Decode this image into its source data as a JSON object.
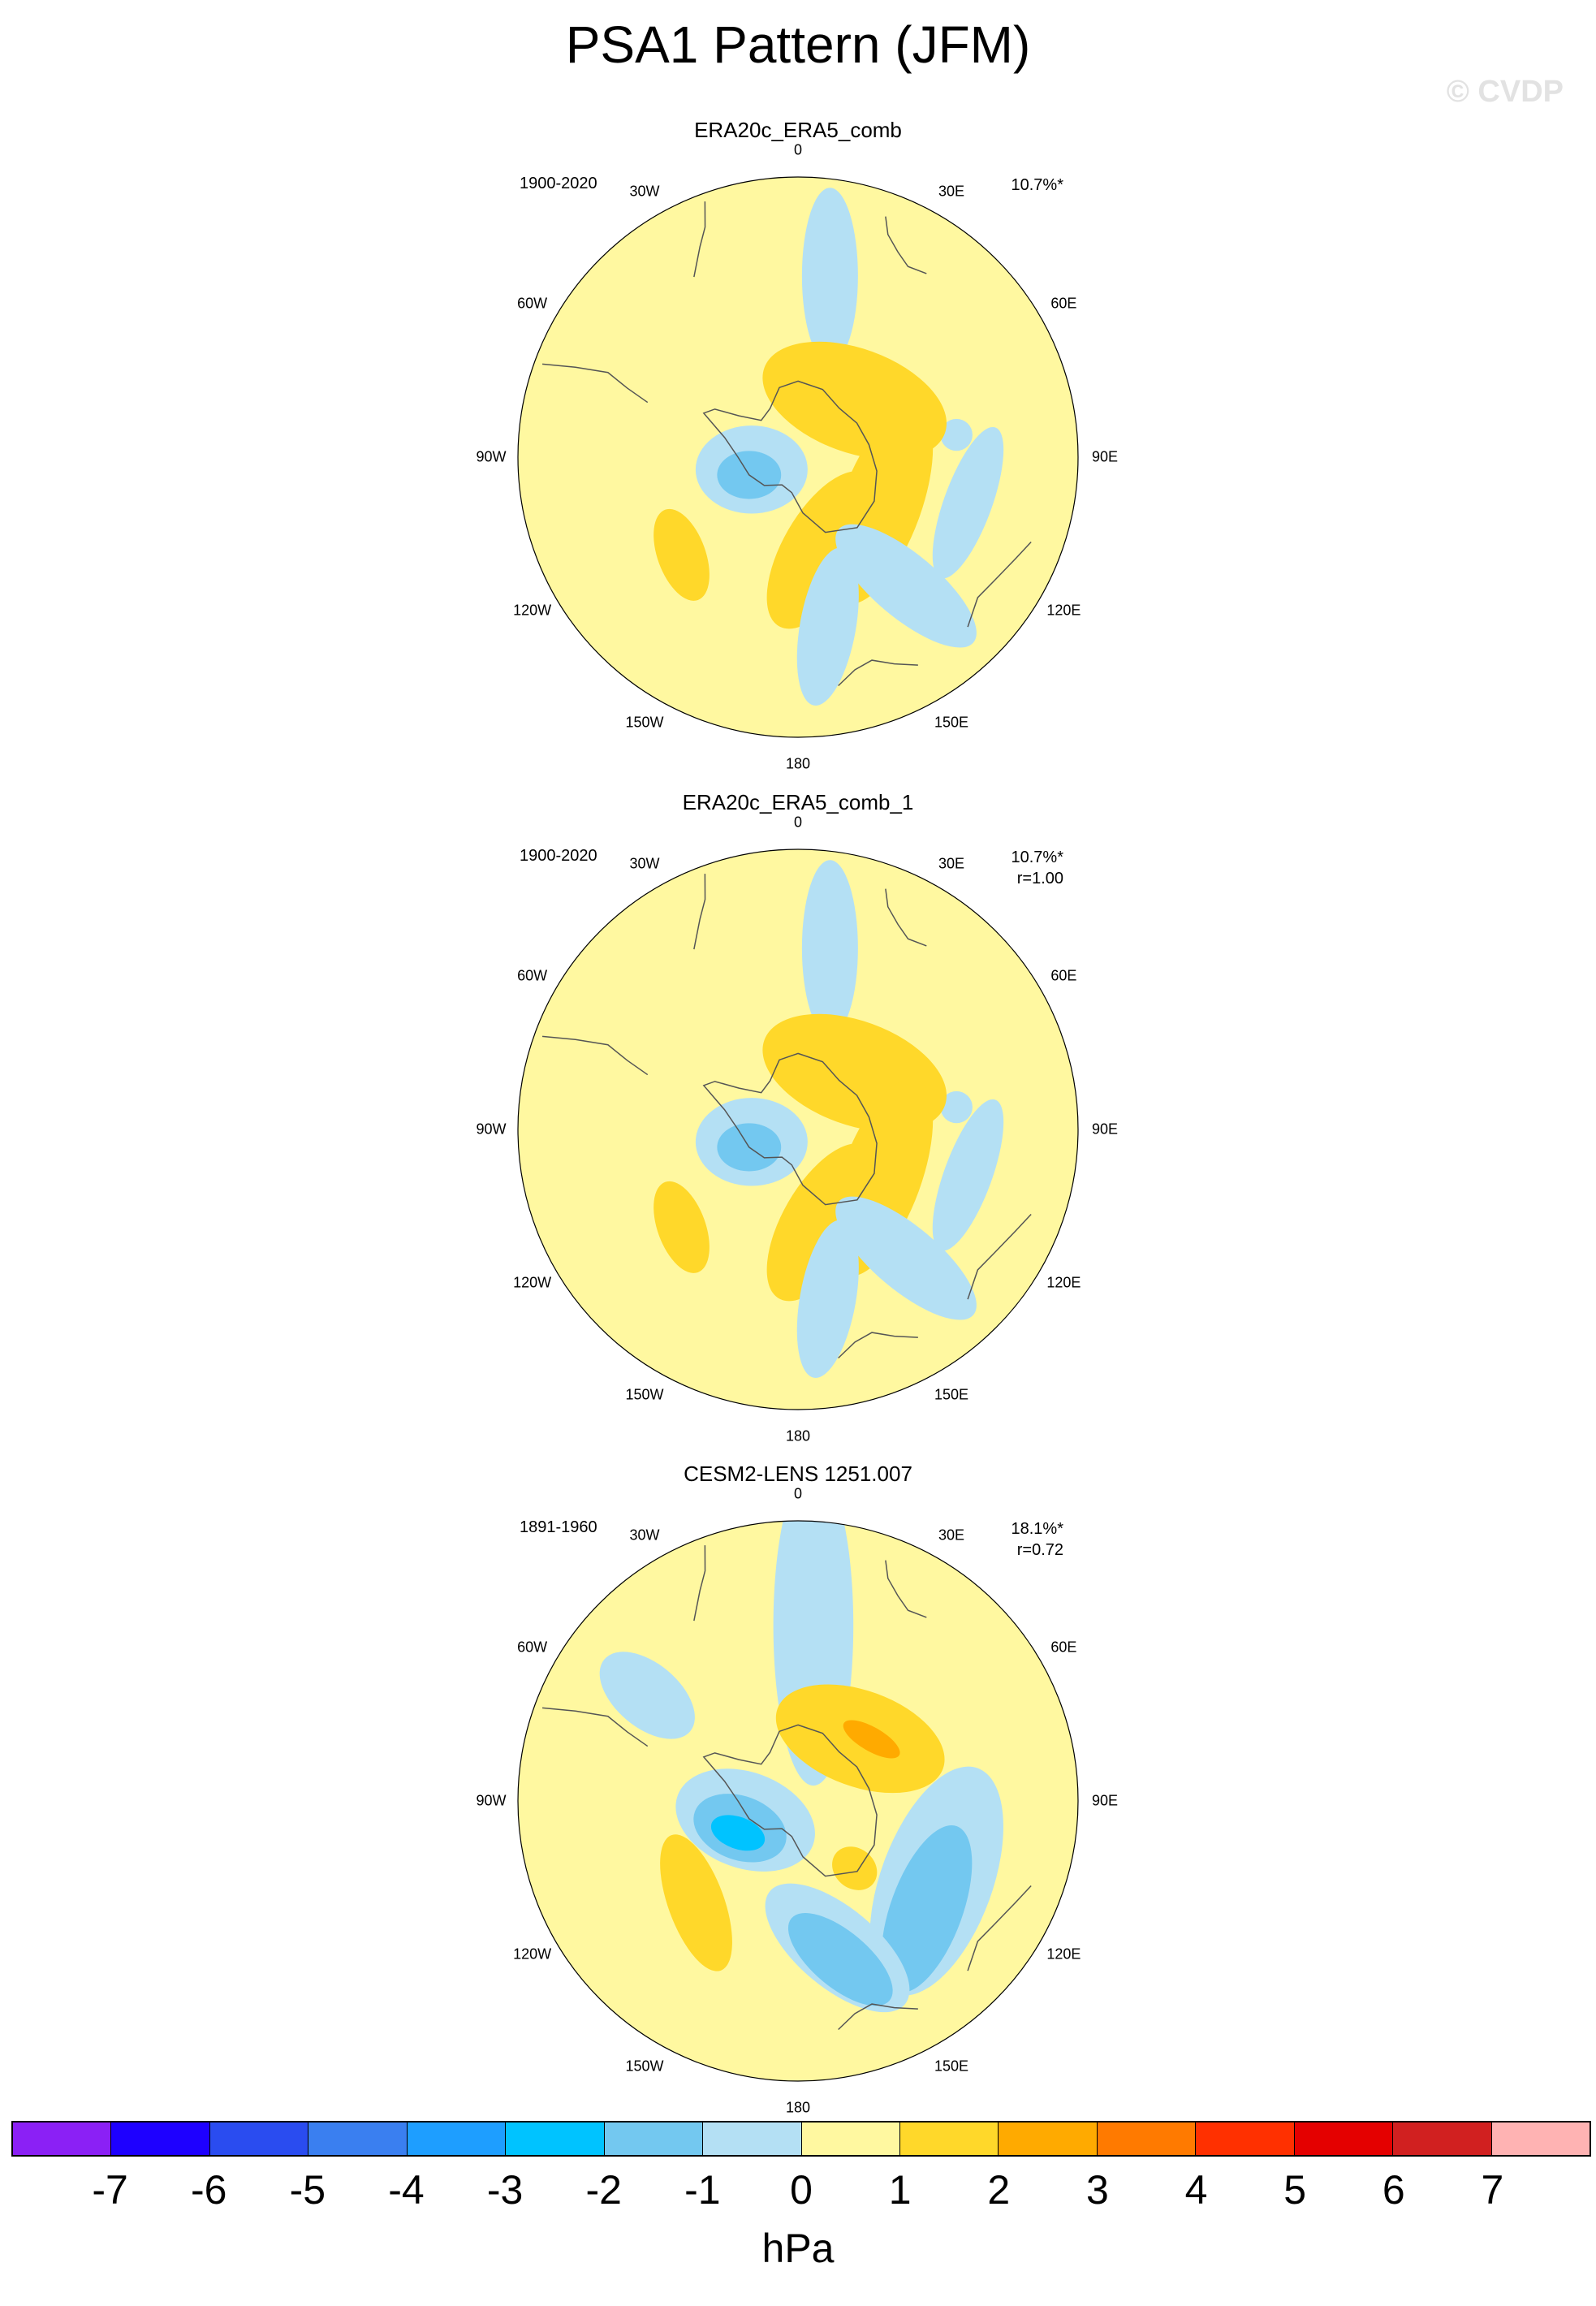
{
  "title": "PSA1 Pattern (JFM)",
  "watermark": "© CVDP",
  "longitude_labels": [
    "0",
    "30E",
    "60E",
    "90E",
    "120E",
    "150E",
    "180",
    "150W",
    "120W",
    "90W",
    "60W",
    "30W"
  ],
  "panels": [
    {
      "title": "ERA20c_ERA5_comb",
      "period": "1900-2020",
      "stats": [
        "10.7%*"
      ],
      "features": [
        {
          "kind": "neg1",
          "lon": 10,
          "colat": 46,
          "r1": 7,
          "r2": 22,
          "rot": 90
        },
        {
          "kind": "neg1",
          "lon": 82,
          "colat": 40,
          "r1": 4,
          "r2": 4,
          "rot": 0
        },
        {
          "kind": "ring",
          "lon": 45,
          "colat": 20,
          "r1": 13,
          "r2": 24,
          "rot": 20
        },
        {
          "kind": "ring",
          "lon": 120,
          "colat": 24,
          "r1": 10,
          "r2": 26,
          "rot": 110
        },
        {
          "kind": "ring",
          "lon": 165,
          "colat": 24,
          "r1": 10,
          "r2": 22,
          "rot": 120
        },
        {
          "kind": "ring",
          "lon": -130,
          "colat": 38,
          "r1": 6,
          "r2": 12,
          "rot": 70
        },
        {
          "kind": "neg1",
          "lon": -105,
          "colat": 12,
          "r1": 11,
          "r2": 14,
          "rot": 0
        },
        {
          "kind": "neg2",
          "lon": -110,
          "colat": 13,
          "r1": 6,
          "r2": 8,
          "rot": 0
        },
        {
          "kind": "neg1",
          "lon": 105,
          "colat": 44,
          "r1": 6,
          "r2": 20,
          "rot": 110
        },
        {
          "kind": "neg1",
          "lon": 140,
          "colat": 42,
          "r1": 8,
          "r2": 22,
          "rot": 40
        },
        {
          "kind": "neg1",
          "lon": 170,
          "colat": 43,
          "r1": 7,
          "r2": 20,
          "rot": 100
        }
      ]
    },
    {
      "title": "ERA20c_ERA5_comb_1",
      "period": "1900-2020",
      "stats": [
        "10.7%*",
        "r=1.00"
      ],
      "features": [
        {
          "kind": "neg1",
          "lon": 10,
          "colat": 46,
          "r1": 7,
          "r2": 22,
          "rot": 90
        },
        {
          "kind": "neg1",
          "lon": 82,
          "colat": 40,
          "r1": 4,
          "r2": 4,
          "rot": 0
        },
        {
          "kind": "ring",
          "lon": 45,
          "colat": 20,
          "r1": 13,
          "r2": 24,
          "rot": 20
        },
        {
          "kind": "ring",
          "lon": 120,
          "colat": 24,
          "r1": 10,
          "r2": 26,
          "rot": 110
        },
        {
          "kind": "ring",
          "lon": 165,
          "colat": 24,
          "r1": 10,
          "r2": 22,
          "rot": 120
        },
        {
          "kind": "ring",
          "lon": -130,
          "colat": 38,
          "r1": 6,
          "r2": 12,
          "rot": 70
        },
        {
          "kind": "neg1",
          "lon": -105,
          "colat": 12,
          "r1": 11,
          "r2": 14,
          "rot": 0
        },
        {
          "kind": "neg2",
          "lon": -110,
          "colat": 13,
          "r1": 6,
          "r2": 8,
          "rot": 0
        },
        {
          "kind": "neg1",
          "lon": 105,
          "colat": 44,
          "r1": 6,
          "r2": 20,
          "rot": 110
        },
        {
          "kind": "neg1",
          "lon": 140,
          "colat": 42,
          "r1": 8,
          "r2": 22,
          "rot": 40
        },
        {
          "kind": "neg1",
          "lon": 170,
          "colat": 43,
          "r1": 7,
          "r2": 20,
          "rot": 100
        }
      ]
    },
    {
      "title": "CESM2-LENS 1251.007",
      "period": "1891-1960",
      "stats": [
        "18.1%*",
        "r=0.72"
      ],
      "features": [
        {
          "kind": "neg1",
          "lon": 5,
          "colat": 44,
          "r1": 10,
          "r2": 40,
          "rot": 90
        },
        {
          "kind": "neg1",
          "lon": -55,
          "colat": 46,
          "r1": 8,
          "r2": 14,
          "rot": 40
        },
        {
          "kind": "neg1",
          "lon": 120,
          "colat": 40,
          "r1": 14,
          "r2": 30,
          "rot": 110
        },
        {
          "kind": "neg2",
          "lon": 130,
          "colat": 42,
          "r1": 9,
          "r2": 22,
          "rot": 110
        },
        {
          "kind": "neg1",
          "lon": 165,
          "colat": 38,
          "r1": 10,
          "r2": 22,
          "rot": 40
        },
        {
          "kind": "neg2",
          "lon": 165,
          "colat": 41,
          "r1": 7,
          "r2": 16,
          "rot": 40
        },
        {
          "kind": "ring",
          "lon": 45,
          "colat": 22,
          "r1": 12,
          "r2": 22,
          "rot": 20
        },
        {
          "kind": "pos2",
          "lon": 50,
          "colat": 24,
          "r1": 3,
          "r2": 8,
          "rot": 30
        },
        {
          "kind": "ring",
          "lon": -135,
          "colat": 36,
          "r1": 7,
          "r2": 18,
          "rot": 70
        },
        {
          "kind": "ring",
          "lon": 140,
          "colat": 22,
          "r1": 5,
          "r2": 6,
          "rot": 40
        },
        {
          "kind": "neg1",
          "lon": -110,
          "colat": 14,
          "r1": 12,
          "r2": 18,
          "rot": 20
        },
        {
          "kind": "neg2",
          "lon": -115,
          "colat": 16,
          "r1": 8,
          "r2": 12,
          "rot": 20
        },
        {
          "kind": "neg3",
          "lon": -118,
          "colat": 17,
          "r1": 4,
          "r2": 7,
          "rot": 20
        }
      ]
    }
  ],
  "colorbar": {
    "units": "hPa",
    "tick_labels": [
      "-7",
      "-6",
      "-5",
      "-4",
      "-3",
      "-2",
      "-1",
      "0",
      "1",
      "2",
      "3",
      "4",
      "5",
      "6",
      "7"
    ],
    "colors": [
      "#8b20f5",
      "#1e00ff",
      "#2a4cf0",
      "#3a7ff0",
      "#1e9eff",
      "#00c3ff",
      "#73c8f0",
      "#b4e0f4",
      "#fff8a0",
      "#ffd82a",
      "#ffaa00",
      "#ff7a00",
      "#ff3000",
      "#e40000",
      "#d12020",
      "#ffb3b3"
    ]
  },
  "fill_colors": {
    "background": "#fff8a0",
    "ring": "#ffd82a",
    "pos2": "#ffaa00",
    "neg1": "#b4e0f4",
    "neg2": "#73c8f0",
    "neg3": "#00c3ff"
  }
}
